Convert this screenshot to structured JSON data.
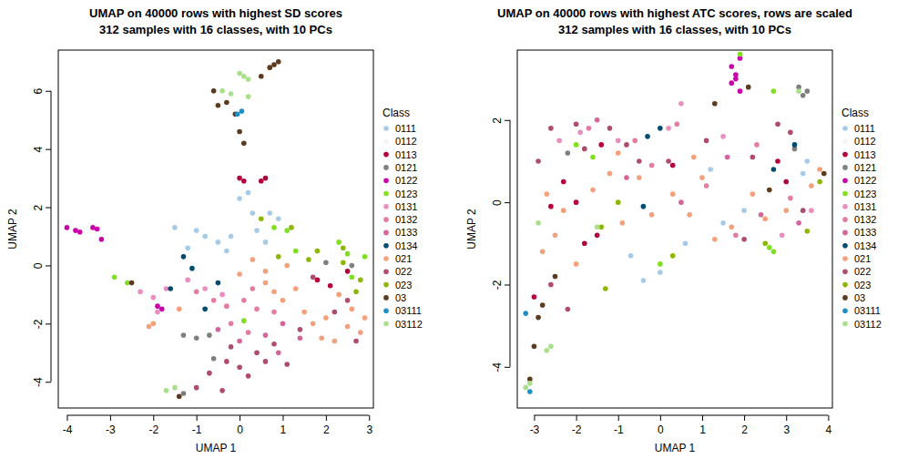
{
  "chart_data": [
    {
      "type": "scatter",
      "title": "UMAP on 40000 rows with highest SD scores",
      "subtitle": "312 samples with 16 classes, with 10 PCs",
      "x_label": "UMAP 1",
      "y_label": "UMAP 2",
      "legend_title": "Class",
      "legend": "right",
      "xlim": [
        -4.2,
        3.1
      ],
      "xticks": [
        -4,
        -3,
        -2,
        -1,
        0,
        1,
        2,
        3
      ],
      "ylim": [
        -4.9,
        7.4
      ],
      "yticks": [
        -4,
        -2,
        0,
        2,
        4,
        6
      ],
      "series": [
        {
          "name": "0111",
          "color": "#a6cbe8",
          "x": [
            -1.5,
            -1,
            -0.8,
            -0.5,
            -0.3,
            0,
            0.3,
            0.2,
            0.7,
            0.9,
            -0.2,
            0.4,
            -1.2,
            0.6
          ],
          "values": [
            1.3,
            1.2,
            1,
            0.8,
            0.5,
            2.3,
            1.8,
            2.5,
            1.8,
            1.6,
            1,
            1.2,
            0.6,
            0.8
          ]
        },
        {
          "name": "0112",
          "color": "#f4f4f4",
          "x": [],
          "values": []
        },
        {
          "name": "0113",
          "color": "#b3003b",
          "x": [
            0,
            0.1,
            0.5,
            0.6,
            2.1,
            2.5,
            1.8
          ],
          "values": [
            3,
            2.9,
            2.9,
            3,
            -0.7,
            -0.2,
            -0.5
          ]
        },
        {
          "name": "0121",
          "color": "#7f7f7f",
          "x": [
            -1.3,
            -1,
            -0.7,
            -0.6,
            2,
            2.6,
            -1.3
          ],
          "values": [
            -2.4,
            -2.5,
            -2.4,
            -3.2,
            0.1,
            0,
            -4.4
          ]
        },
        {
          "name": "0122",
          "color": "#cc00aa",
          "x": [
            -4,
            -3.8,
            -3.7,
            -3.4,
            -3.3,
            -3.2,
            -1.9,
            -1.8
          ],
          "values": [
            1.3,
            1.2,
            1.15,
            1.3,
            1.25,
            0.9,
            -1.4,
            -1.5
          ]
        },
        {
          "name": "0123",
          "color": "#7fe020",
          "x": [
            -2.9,
            -2.6,
            0.8,
            1.1,
            2.3,
            2.5,
            2.9,
            2.6,
            0.1,
            1.3
          ],
          "values": [
            -0.4,
            -0.6,
            1.3,
            1.2,
            0.8,
            0.4,
            0.3,
            -0.4,
            -1.9,
            0.5
          ]
        },
        {
          "name": "0131",
          "color": "#e98fc0",
          "x": [
            -2,
            -1.9,
            -1.7,
            -1.2,
            -0.8,
            -0.4,
            -2.3
          ],
          "values": [
            -1.1,
            -1.6,
            -0.8,
            -0.5,
            -0.8,
            -1,
            -0.9
          ]
        },
        {
          "name": "0132",
          "color": "#e57aa3",
          "x": [
            -1,
            -0.6,
            -0.3,
            0.1,
            0.4,
            0.2,
            0.8,
            0.3,
            -0.2
          ],
          "values": [
            -0.9,
            -1.2,
            -1.4,
            -1.2,
            -1.5,
            -2.3,
            -1.6,
            -0.8,
            -2
          ]
        },
        {
          "name": "0133",
          "color": "#d4649a",
          "x": [
            -0.5,
            0,
            0.6,
            1,
            1.4,
            0.9
          ],
          "values": [
            -2.2,
            -2.6,
            -2.4,
            -2,
            -2.5,
            -3
          ]
        },
        {
          "name": "0134",
          "color": "#004c70",
          "x": [
            -1.3,
            -1.1,
            -1.6,
            -0.5,
            -0.8
          ],
          "values": [
            0.3,
            -0.1,
            -0.8,
            -0.6,
            -1.5
          ]
        },
        {
          "name": "021",
          "color": "#f4a07a",
          "x": [
            -2,
            -2.1,
            -1.4,
            0,
            0.3,
            0.6,
            0.8,
            1,
            1.3,
            1.5,
            1.7,
            2,
            2.3,
            2.6,
            2.8,
            2.9,
            2.2,
            1.1,
            0.6,
            1.9,
            2.5
          ],
          "values": [
            -2,
            -2.1,
            -1.5,
            -0.3,
            0.2,
            -0.2,
            -0.9,
            -1.2,
            -0.8,
            -1.6,
            -2,
            -1.8,
            -1,
            -1.5,
            -2.3,
            -1.8,
            -2.6,
            0,
            -0.6,
            -2.5,
            -2.1
          ]
        },
        {
          "name": "022",
          "color": "#b04a6e",
          "x": [
            -0.7,
            -0.3,
            0,
            0.2,
            0.4,
            0.6,
            0.8,
            1.1,
            -1,
            -0.4,
            1.4,
            1.7,
            2.2,
            2.7,
            2.5,
            -0.2
          ],
          "values": [
            -3.7,
            -3.3,
            -3.5,
            -3.8,
            -3,
            -3.3,
            -2.7,
            -3.4,
            -4.2,
            -4.3,
            -2.2,
            -0.4,
            -1.6,
            -2.6,
            -1.2,
            -2.8
          ]
        },
        {
          "name": "023",
          "color": "#8db600",
          "x": [
            0.5,
            1.2,
            0.9,
            1.6,
            2.4,
            2.4,
            2.8,
            2.7,
            1.8
          ],
          "values": [
            1.6,
            1.3,
            0.3,
            0.2,
            0.6,
            0.1,
            -0.5,
            -0.9,
            0.5
          ]
        },
        {
          "name": "03",
          "color": "#5c3a1e",
          "x": [
            -2.5,
            -0.6,
            -0.5,
            -0.3,
            0.7,
            0.8,
            0.9,
            0,
            0.1,
            0.5,
            -0.1,
            -1.4
          ],
          "values": [
            -0.6,
            6,
            5.5,
            5.6,
            6.8,
            6.9,
            7,
            4.6,
            4.2,
            6.5,
            5.2,
            -4.5
          ]
        },
        {
          "name": "03111",
          "color": "#1e90c8",
          "x": [
            0.05,
            -0.05
          ],
          "values": [
            5.3,
            5.2
          ]
        },
        {
          "name": "03112",
          "color": "#a8e08c",
          "x": [
            -0.4,
            0,
            0.1,
            0.2,
            -0.2,
            0.2,
            -1.5,
            -1.7
          ],
          "values": [
            6,
            6.6,
            6.5,
            6.4,
            5.9,
            5.8,
            -4.2,
            -4.3
          ]
        }
      ]
    },
    {
      "type": "scatter",
      "title": "UMAP on 40000 rows with highest ATC scores, rows are scaled",
      "subtitle": "312 samples with 16 classes, with 10 PCs",
      "x_label": "UMAP 1",
      "y_label": "UMAP 2",
      "legend_title": "Class",
      "legend": "right",
      "xlim": [
        -3.4,
        4.1
      ],
      "xticks": [
        -3,
        -2,
        -1,
        0,
        1,
        2,
        3,
        4
      ],
      "ylim": [
        -5,
        3.7
      ],
      "yticks": [
        -4,
        -2,
        0,
        2
      ],
      "series": [
        {
          "name": "0111",
          "color": "#a6cbe8",
          "x": [
            -0.7,
            -0.4,
            0,
            0.6,
            1.5,
            2,
            3.4,
            3.5,
            1.2
          ],
          "values": [
            -1.3,
            -1.9,
            -1.7,
            -1,
            -0.5,
            -0.2,
            0.7,
            1,
            0.8
          ]
        },
        {
          "name": "0112",
          "color": "#f4f4f4",
          "x": [],
          "values": []
        },
        {
          "name": "0113",
          "color": "#b3003b",
          "x": [
            -3,
            -2.6,
            -2.3,
            -2,
            -1.5,
            -1.8,
            2.8,
            3,
            -1.4,
            0.3
          ],
          "values": [
            -2.3,
            -0.1,
            0.5,
            0,
            -0.8,
            -1,
            1,
            0.5,
            1.4,
            0.9
          ]
        },
        {
          "name": "0121",
          "color": "#7f7f7f",
          "x": [
            3.3,
            3.5,
            3.4,
            -2.2,
            3.2
          ],
          "values": [
            2.8,
            2.7,
            2.6,
            1.2,
            1.3
          ]
        },
        {
          "name": "0122",
          "color": "#cc00aa",
          "x": [
            1.8,
            1.7,
            1.8,
            1.9,
            1.7,
            1.9
          ],
          "values": [
            3.1,
            2.9,
            3,
            2.7,
            3.3,
            3.5
          ]
        },
        {
          "name": "0123",
          "color": "#7fe020",
          "x": [
            1.9,
            2.7,
            -2,
            -1.6,
            2.6,
            2.7,
            0
          ],
          "values": [
            3.6,
            2.7,
            1.4,
            1.1,
            -1.1,
            -1.2,
            -1.5
          ]
        },
        {
          "name": "0131",
          "color": "#e98fc0",
          "x": [
            -2.4,
            -1.9,
            -1,
            0.2,
            0.5,
            1.5,
            2.9,
            3.6
          ],
          "values": [
            1.5,
            1.7,
            1.5,
            1.8,
            2.4,
            1.6,
            -0.8,
            -0.2
          ]
        },
        {
          "name": "0132",
          "color": "#e57aa3",
          "x": [
            -1.7,
            -0.6,
            0.4,
            1.1,
            1.8,
            2.3,
            3.1,
            -0.2
          ],
          "values": [
            1.8,
            1.5,
            1.9,
            0.4,
            -0.8,
            1.4,
            0.1,
            0.9
          ]
        },
        {
          "name": "0133",
          "color": "#d4649a",
          "x": [
            -1.5,
            -0.8,
            0.5,
            1.6,
            2.4,
            3.3
          ],
          "values": [
            2,
            0.6,
            0,
            1.1,
            -0.3,
            -0.5
          ]
        },
        {
          "name": "0134",
          "color": "#004c70",
          "x": [
            -0.3,
            -0.4,
            3.2,
            2.7,
            0
          ],
          "values": [
            1.6,
            -0.1,
            1.4,
            0.8,
            1.8
          ]
        },
        {
          "name": "021",
          "color": "#f4a07a",
          "x": [
            -2.8,
            -2.5,
            -2.3,
            -2,
            -1.6,
            -1.2,
            -0.9,
            -0.5,
            -0.2,
            0.3,
            0.7,
            1,
            1.3,
            1.7,
            2.2,
            2.5,
            3,
            3.6,
            -2.7,
            -1,
            0.8,
            3.8
          ],
          "values": [
            -1.2,
            -0.8,
            -0.2,
            -1.5,
            0.3,
            0.7,
            -0.5,
            0.6,
            -0.3,
            0.2,
            -0.3,
            0.6,
            -0.9,
            -0.6,
            0.2,
            -0.4,
            -0.2,
            0.4,
            0.2,
            1.2,
            1.1,
            0.8
          ]
        },
        {
          "name": "022",
          "color": "#b04a6e",
          "x": [
            -2.6,
            -2.2,
            -2.6,
            -2,
            -1.8,
            -1.2,
            -0.8,
            -0.5,
            0.2,
            1.1,
            2.2,
            2.8,
            3.1,
            3.4,
            2,
            -2.9
          ],
          "values": [
            -2,
            -2.6,
            1.8,
            1.9,
            1.3,
            1.8,
            1.4,
            1,
            1,
            1.5,
            1.1,
            1.9,
            1.7,
            -0.2,
            -0.9,
            1
          ]
        },
        {
          "name": "023",
          "color": "#8db600",
          "x": [
            -1.4,
            -1.3,
            0.3,
            2.5,
            3.5,
            3.8,
            -1
          ],
          "values": [
            -0.6,
            -2.1,
            -1.3,
            -1,
            -0.7,
            0.5,
            0
          ]
        },
        {
          "name": "03",
          "color": "#5c3a1e",
          "x": [
            -2.9,
            -2.8,
            -3,
            -2.5,
            -3.1,
            2.1,
            3.9,
            2.6,
            1.3
          ],
          "values": [
            -2.8,
            -2.5,
            -3.5,
            -1.8,
            -4.3,
            2.8,
            0.7,
            0.3,
            2.4
          ]
        },
        {
          "name": "03111",
          "color": "#1e90c8",
          "x": [
            -3.2,
            -3.1
          ],
          "values": [
            -2.7,
            -4.6
          ]
        },
        {
          "name": "03112",
          "color": "#a8e08c",
          "x": [
            3.3,
            -2.6,
            -2.7,
            -3.2,
            -3.1,
            -2.9,
            -1.5
          ],
          "values": [
            2.7,
            -3.5,
            -3.6,
            -4.5,
            -4.4,
            -0.5,
            -0.6
          ]
        }
      ]
    }
  ]
}
